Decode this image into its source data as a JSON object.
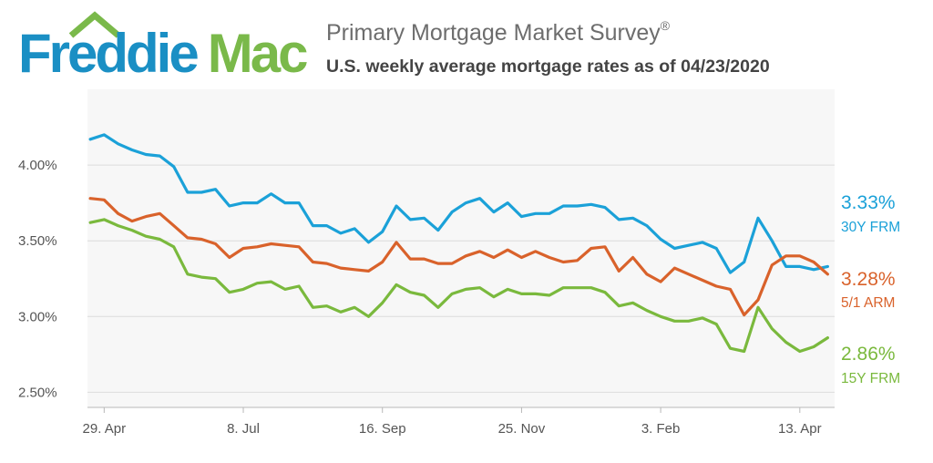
{
  "logo": {
    "text_left": "Freddie",
    "text_right": "Mac",
    "color_left": "#1a8fc4",
    "color_right": "#7ab94a",
    "roof_color": "#7ab94a"
  },
  "header": {
    "title": "Primary Mortgage Market Survey",
    "title_mark": "®",
    "subtitle": "U.S. weekly average mortgage rates as of 04/23/2020"
  },
  "chart_data": {
    "type": "line",
    "title": "Primary Mortgage Market Survey®",
    "subtitle": "U.S. weekly average mortgage rates as of 04/23/2020",
    "xlabel": "",
    "ylabel": "",
    "ylim": [
      2.4,
      4.5
    ],
    "yticks": [
      2.5,
      3.0,
      3.5,
      4.0
    ],
    "ytick_labels": [
      "2.50%",
      "3.00%",
      "3.50%",
      "4.00%"
    ],
    "x_tick_labels": [
      "29. Apr",
      "8. Jul",
      "16. Sep",
      "25. Nov",
      "3. Feb",
      "13. Apr"
    ],
    "x_tick_indices": [
      1,
      11,
      21,
      31,
      41,
      51
    ],
    "x_range": [
      -0.2,
      53.5
    ],
    "grid": true,
    "legend": "end-labels-right",
    "series": [
      {
        "name": "30Y FRM",
        "end_label": "3.33%",
        "color": "#1ba1d8",
        "values": [
          4.17,
          4.2,
          4.14,
          4.1,
          4.07,
          4.06,
          3.99,
          3.82,
          3.82,
          3.84,
          3.73,
          3.75,
          3.75,
          3.81,
          3.75,
          3.75,
          3.6,
          3.6,
          3.55,
          3.58,
          3.49,
          3.56,
          3.73,
          3.64,
          3.65,
          3.57,
          3.69,
          3.75,
          3.78,
          3.69,
          3.75,
          3.66,
          3.68,
          3.68,
          3.73,
          3.73,
          3.74,
          3.72,
          3.64,
          3.65,
          3.6,
          3.51,
          3.45,
          3.47,
          3.49,
          3.45,
          3.29,
          3.36,
          3.65,
          3.5,
          3.33,
          3.33,
          3.31,
          3.33
        ]
      },
      {
        "name": "5/1 ARM",
        "end_label": "3.28%",
        "color": "#d9622b",
        "values": [
          3.78,
          3.77,
          3.68,
          3.63,
          3.66,
          3.68,
          3.6,
          3.52,
          3.51,
          3.48,
          3.39,
          3.45,
          3.46,
          3.48,
          3.47,
          3.46,
          3.36,
          3.35,
          3.32,
          3.31,
          3.3,
          3.36,
          3.49,
          3.38,
          3.38,
          3.35,
          3.35,
          3.4,
          3.43,
          3.39,
          3.44,
          3.39,
          3.43,
          3.39,
          3.36,
          3.37,
          3.45,
          3.46,
          3.3,
          3.39,
          3.28,
          3.23,
          3.32,
          3.28,
          3.24,
          3.2,
          3.18,
          3.01,
          3.11,
          3.34,
          3.4,
          3.4,
          3.36,
          3.28
        ]
      },
      {
        "name": "15Y FRM",
        "end_label": "2.86%",
        "color": "#7ab93d",
        "values": [
          3.62,
          3.64,
          3.6,
          3.57,
          3.53,
          3.51,
          3.46,
          3.28,
          3.26,
          3.25,
          3.16,
          3.18,
          3.22,
          3.23,
          3.18,
          3.2,
          3.06,
          3.07,
          3.03,
          3.06,
          3.0,
          3.09,
          3.21,
          3.16,
          3.14,
          3.06,
          3.15,
          3.18,
          3.19,
          3.13,
          3.18,
          3.15,
          3.15,
          3.14,
          3.19,
          3.19,
          3.19,
          3.16,
          3.07,
          3.09,
          3.04,
          3.0,
          2.97,
          2.97,
          2.99,
          2.95,
          2.79,
          2.77,
          3.06,
          2.92,
          2.83,
          2.77,
          2.8,
          2.86
        ]
      }
    ]
  }
}
